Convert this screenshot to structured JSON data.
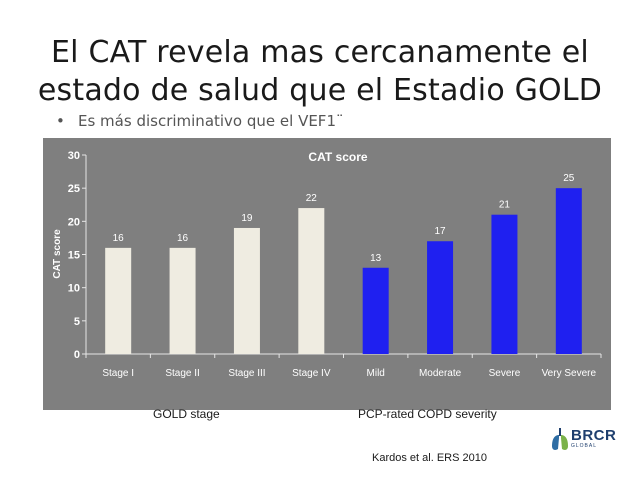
{
  "slide": {
    "title": "El CAT revela mas cercanamente el estado de salud que el Estadio GOLD",
    "bullet": "Es más discriminativo que el VEF1¨",
    "bullet_marker": "•",
    "group_label_left": "GOLD stage",
    "group_label_right": "PCP-rated COPD severity",
    "citation": "Kardos et al. ERS 2010",
    "logo_text": "BRCR",
    "logo_subtext": "GLOBAL"
  },
  "colors": {
    "panel_background": "#7f7f7f",
    "gold_bars": "#efece1",
    "severity_bars": "#1f20f0",
    "logo": "#1f3f6e"
  },
  "chart_data": {
    "type": "bar",
    "title": "CAT score",
    "xlabel": "",
    "ylabel": "CAT score",
    "ylim": [
      0,
      30
    ],
    "yticks": [
      0,
      5,
      10,
      15,
      20,
      25,
      30
    ],
    "grid": false,
    "legend": "none",
    "categories": [
      "Stage I",
      "Stage II",
      "Stage III",
      "Stage IV",
      "Mild",
      "Moderate",
      "Severe",
      "Very Severe"
    ],
    "values": [
      16,
      16,
      19,
      22,
      13,
      17,
      21,
      25
    ],
    "data_labels": [
      "16",
      "16",
      "19",
      "22",
      "13",
      "17",
      "21",
      "25"
    ],
    "bar_groups": [
      "GOLD stage",
      "GOLD stage",
      "GOLD stage",
      "GOLD stage",
      "PCP-rated COPD severity",
      "PCP-rated COPD severity",
      "PCP-rated COPD severity",
      "PCP-rated COPD severity"
    ]
  }
}
